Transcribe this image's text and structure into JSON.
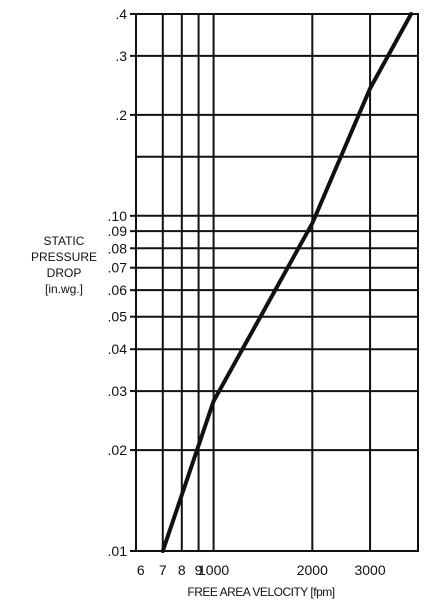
{
  "chart_data": {
    "type": "line",
    "title": "",
    "xlabel": "FREE AREA VELOCITY [fpm]",
    "ylabel_lines": [
      "STATIC",
      "PRESSURE",
      "DROP",
      "[in.wg.]"
    ],
    "x_scale": "log",
    "y_scale": "log",
    "xlim": [
      580,
      4200
    ],
    "ylim": [
      0.01,
      0.4
    ],
    "grid": true,
    "x_ticks": [
      {
        "value": 600,
        "label": "6"
      },
      {
        "value": 700,
        "label": "7"
      },
      {
        "value": 800,
        "label": "8"
      },
      {
        "value": 900,
        "label": "9"
      },
      {
        "value": 1000,
        "label": "1000"
      },
      {
        "value": 2000,
        "label": "2000"
      },
      {
        "value": 3000,
        "label": "3000"
      }
    ],
    "x_grid": [
      700,
      800,
      900,
      1000,
      2000,
      3000
    ],
    "y_ticks": [
      {
        "value": 0.01,
        "label": ".01"
      },
      {
        "value": 0.02,
        "label": ".02"
      },
      {
        "value": 0.03,
        "label": ".03"
      },
      {
        "value": 0.04,
        "label": ".04"
      },
      {
        "value": 0.05,
        "label": ".05"
      },
      {
        "value": 0.06,
        "label": ".06"
      },
      {
        "value": 0.07,
        "label": ".07"
      },
      {
        "value": 0.08,
        "label": ".08"
      },
      {
        "value": 0.09,
        "label": ".09"
      },
      {
        "value": 0.1,
        "label": ".10"
      },
      {
        "value": 0.2,
        "label": ".2"
      },
      {
        "value": 0.3,
        "label": ".3"
      },
      {
        "value": 0.4,
        "label": ".4"
      }
    ],
    "y_grid": [
      0.01,
      0.02,
      0.03,
      0.04,
      0.05,
      0.06,
      0.07,
      0.08,
      0.09,
      0.1,
      0.15,
      0.2,
      0.3,
      0.4
    ],
    "series": [
      {
        "x": [
          700,
          1000,
          2000,
          3000,
          4000
        ],
        "y": [
          0.01,
          0.028,
          0.095,
          0.24,
          0.4
        ]
      }
    ],
    "line_color": "#111111"
  }
}
